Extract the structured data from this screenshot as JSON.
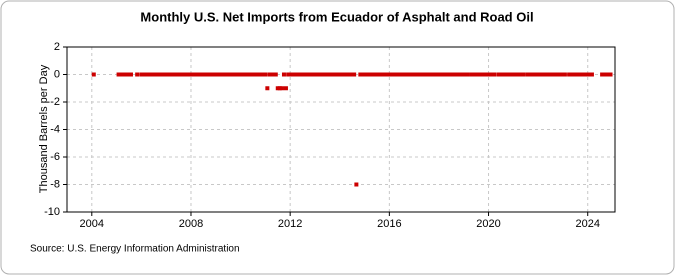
{
  "chart_data": {
    "type": "scatter",
    "title": "Monthly U.S. Net Imports from Ecuador of Asphalt and Road Oil",
    "y_label": "Thousand Barrels per Day",
    "source": "Source: U.S. Energy Information Administration",
    "color": "#cc0000",
    "grid": true,
    "xlim": [
      2003,
      2025.1
    ],
    "xticks": [
      2004,
      2008,
      2012,
      2016,
      2020,
      2024
    ],
    "ylim": [
      -10,
      2
    ],
    "yticks": [
      -10,
      -8,
      -6,
      -4,
      -2,
      0,
      2
    ],
    "x": [
      2004.08,
      2005.08,
      2005.17,
      2005.25,
      2005.33,
      2005.42,
      2005.5,
      2005.58,
      2005.83,
      2006,
      2006.08,
      2006.17,
      2006.25,
      2006.33,
      2006.42,
      2006.5,
      2006.58,
      2006.67,
      2006.75,
      2006.83,
      2006.92,
      2007,
      2007.08,
      2007.17,
      2007.25,
      2007.33,
      2007.42,
      2007.5,
      2007.58,
      2007.67,
      2007.75,
      2007.83,
      2007.92,
      2008,
      2008.08,
      2008.17,
      2008.25,
      2008.33,
      2008.42,
      2008.5,
      2008.58,
      2008.67,
      2008.75,
      2008.83,
      2008.92,
      2009,
      2009.08,
      2009.17,
      2009.25,
      2009.33,
      2009.42,
      2009.5,
      2009.58,
      2009.67,
      2009.75,
      2009.83,
      2009.92,
      2010,
      2010.08,
      2010.17,
      2010.25,
      2010.33,
      2010.42,
      2010.5,
      2010.58,
      2010.67,
      2010.75,
      2010.83,
      2010.92,
      2011,
      2011.08,
      2011.17,
      2011.25,
      2011.33,
      2011.42,
      2011.5,
      2011.58,
      2011.67,
      2011.75,
      2011.83,
      2011.92,
      2012,
      2012.08,
      2012.17,
      2012.25,
      2012.33,
      2012.42,
      2012.5,
      2012.58,
      2012.67,
      2012.75,
      2012.83,
      2012.92,
      2013,
      2013.08,
      2013.17,
      2013.25,
      2013.33,
      2013.42,
      2013.5,
      2013.58,
      2013.67,
      2013.75,
      2013.83,
      2013.92,
      2014,
      2014.08,
      2014.17,
      2014.25,
      2014.33,
      2014.42,
      2014.5,
      2014.58,
      2014.67,
      2014.83,
      2014.92,
      2015,
      2015.08,
      2015.17,
      2015.25,
      2015.33,
      2015.42,
      2015.5,
      2015.58,
      2015.67,
      2015.75,
      2015.83,
      2015.92,
      2016,
      2016.08,
      2016.17,
      2016.25,
      2016.33,
      2016.42,
      2016.5,
      2016.58,
      2016.67,
      2016.75,
      2016.83,
      2016.92,
      2017,
      2017.08,
      2017.17,
      2017.25,
      2017.33,
      2017.42,
      2017.5,
      2017.58,
      2017.67,
      2017.75,
      2017.83,
      2017.92,
      2018,
      2018.08,
      2018.17,
      2018.25,
      2018.33,
      2018.42,
      2018.5,
      2018.58,
      2018.67,
      2018.75,
      2018.83,
      2018.92,
      2019,
      2019.08,
      2019.17,
      2019.33,
      2019.42,
      2019.5,
      2019.58,
      2019.67,
      2019.75,
      2019.83,
      2019.92,
      2020,
      2020.08,
      2020.17,
      2020.25,
      2020.42,
      2020.5,
      2020.58,
      2020.67,
      2020.75,
      2020.83,
      2020.92,
      2021,
      2021.08,
      2021.17,
      2021.25,
      2021.33,
      2021.42,
      2021.58,
      2021.67,
      2021.75,
      2021.83,
      2021.92,
      2022,
      2022.08,
      2022.17,
      2022.25,
      2022.33,
      2022.42,
      2022.5,
      2022.58,
      2022.67,
      2022.75,
      2022.83,
      2022.92,
      2023,
      2023.08,
      2023.25,
      2023.33,
      2023.42,
      2023.5,
      2023.58,
      2023.67,
      2023.75,
      2023.83,
      2023.92,
      2024,
      2024.08,
      2024.17,
      2024.58,
      2024.67,
      2024.75,
      2024.83,
      2024.92
    ],
    "values": [
      0,
      0,
      0,
      0,
      0,
      0,
      0,
      0,
      0,
      0,
      0,
      0,
      0,
      0,
      0,
      0,
      0,
      0,
      0,
      0,
      0,
      0,
      0,
      0,
      0,
      0,
      0,
      0,
      0,
      0,
      0,
      0,
      0,
      0,
      0,
      0,
      0,
      0,
      0,
      0,
      0,
      0,
      0,
      0,
      0,
      0,
      0,
      0,
      0,
      0,
      0,
      0,
      0,
      0,
      0,
      0,
      0,
      0,
      0,
      0,
      0,
      0,
      0,
      0,
      0,
      0,
      0,
      0,
      0,
      0,
      -1,
      0,
      0,
      0,
      0,
      -1,
      -1,
      -1,
      0,
      -1,
      0,
      0,
      0,
      0,
      0,
      0,
      0,
      0,
      0,
      0,
      0,
      0,
      0,
      0,
      0,
      0,
      0,
      0,
      0,
      0,
      0,
      0,
      0,
      0,
      0,
      0,
      0,
      0,
      0,
      0,
      0,
      0,
      0,
      -8,
      0,
      0,
      0,
      0,
      0,
      0,
      0,
      0,
      0,
      0,
      0,
      0,
      0,
      0,
      0,
      0,
      0,
      0,
      0,
      0,
      0,
      0,
      0,
      0,
      0,
      0,
      0,
      0,
      0,
      0,
      0,
      0,
      0,
      0,
      0,
      0,
      0,
      0,
      0,
      0,
      0,
      0,
      0,
      0,
      0,
      0,
      0,
      0,
      0,
      0,
      0,
      0,
      0,
      0,
      0,
      0,
      0,
      0,
      0,
      0,
      0,
      0,
      0,
      0,
      0,
      0,
      0,
      0,
      0,
      0,
      0,
      0,
      0,
      0,
      0,
      0,
      0,
      0,
      0,
      0,
      0,
      0,
      0,
      0,
      0,
      0,
      0,
      0,
      0,
      0,
      0,
      0,
      0,
      0,
      0,
      0,
      0,
      0,
      0,
      0,
      0,
      0,
      0,
      0,
      0,
      0,
      0,
      0,
      0,
      0,
      0,
      0,
      0,
      0
    ]
  }
}
